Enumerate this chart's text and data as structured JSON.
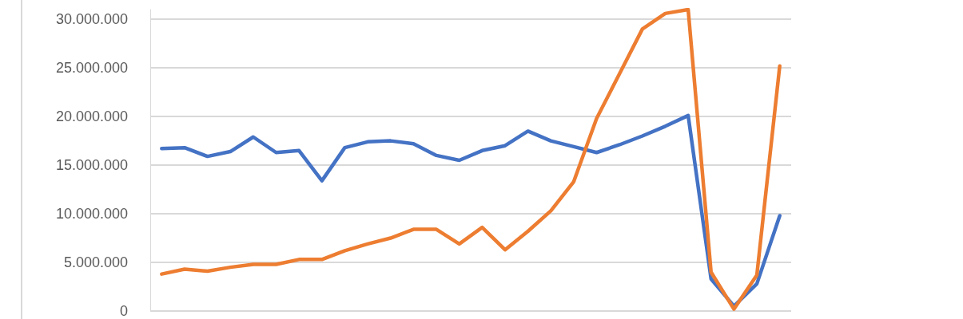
{
  "chart_data": {
    "type": "line",
    "categories": [
      null,
      null,
      null,
      null,
      null,
      null,
      null,
      null,
      null,
      null,
      null,
      null,
      null,
      null,
      null,
      null,
      null,
      null,
      null,
      null,
      null,
      null,
      null,
      null,
      null,
      null,
      null,
      null
    ],
    "series": [
      {
        "color": "#4472c4",
        "values": [
          16700000,
          16800000,
          15900000,
          16400000,
          17900000,
          16300000,
          16500000,
          13400000,
          16800000,
          17400000,
          17500000,
          17200000,
          16000000,
          15500000,
          16500000,
          17000000,
          18500000,
          17500000,
          16900000,
          16300000,
          17100000,
          18000000,
          19000000,
          20100000,
          3300000,
          500000,
          2800000,
          9800000
        ]
      },
      {
        "color": "#ed7d31",
        "values": [
          3800000,
          4300000,
          4100000,
          4500000,
          4800000,
          4800000,
          5300000,
          5300000,
          6200000,
          6900000,
          7500000,
          8400000,
          8400000,
          6900000,
          8600000,
          6300000,
          8200000,
          10300000,
          13300000,
          19800000,
          24400000,
          29000000,
          30600000,
          31000000,
          4000000,
          200000,
          3700000,
          25200000
        ]
      }
    ],
    "ylim": [
      0,
      31000000
    ],
    "yticks": [
      {
        "value": 0,
        "label": "0"
      },
      {
        "value": 5000000,
        "label": "5.000.000"
      },
      {
        "value": 10000000,
        "label": "10.000.000"
      },
      {
        "value": 15000000,
        "label": "15.000.000"
      },
      {
        "value": 20000000,
        "label": "20.000.000"
      },
      {
        "value": 25000000,
        "label": "25.000.000"
      },
      {
        "value": 30000000,
        "label": "30.000.000"
      }
    ],
    "grid": "y",
    "marker": "none",
    "line_style": "solid"
  }
}
